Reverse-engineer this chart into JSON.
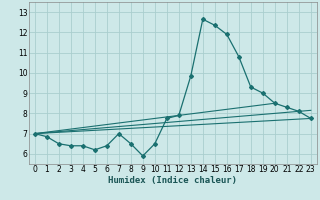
{
  "xlabel": "Humidex (Indice chaleur)",
  "bg_color": "#cde8e8",
  "grid_color": "#aacece",
  "line_color": "#1a7070",
  "xlim": [
    -0.5,
    23.5
  ],
  "ylim": [
    5.5,
    13.5
  ],
  "xticks": [
    0,
    1,
    2,
    3,
    4,
    5,
    6,
    7,
    8,
    9,
    10,
    11,
    12,
    13,
    14,
    15,
    16,
    17,
    18,
    19,
    20,
    21,
    22,
    23
  ],
  "yticks": [
    6,
    7,
    8,
    9,
    10,
    11,
    12,
    13
  ],
  "series": [
    [
      0,
      7.0
    ],
    [
      1,
      6.85
    ],
    [
      2,
      6.5
    ],
    [
      3,
      6.4
    ],
    [
      4,
      6.4
    ],
    [
      5,
      6.2
    ],
    [
      6,
      6.4
    ],
    [
      7,
      7.0
    ],
    [
      8,
      6.5
    ],
    [
      9,
      5.9
    ],
    [
      10,
      6.5
    ],
    [
      11,
      7.75
    ],
    [
      12,
      7.9
    ],
    [
      13,
      9.85
    ],
    [
      14,
      12.65
    ],
    [
      15,
      12.35
    ],
    [
      16,
      11.9
    ],
    [
      17,
      10.8
    ],
    [
      18,
      9.3
    ],
    [
      19,
      9.0
    ],
    [
      20,
      8.5
    ],
    [
      21,
      8.3
    ],
    [
      22,
      8.1
    ],
    [
      23,
      7.75
    ]
  ],
  "extra_lines": [
    [
      [
        0,
        7.0
      ],
      [
        23,
        7.75
      ]
    ],
    [
      [
        0,
        7.0
      ],
      [
        20,
        8.5
      ]
    ],
    [
      [
        0,
        7.0
      ],
      [
        23,
        8.15
      ]
    ]
  ]
}
